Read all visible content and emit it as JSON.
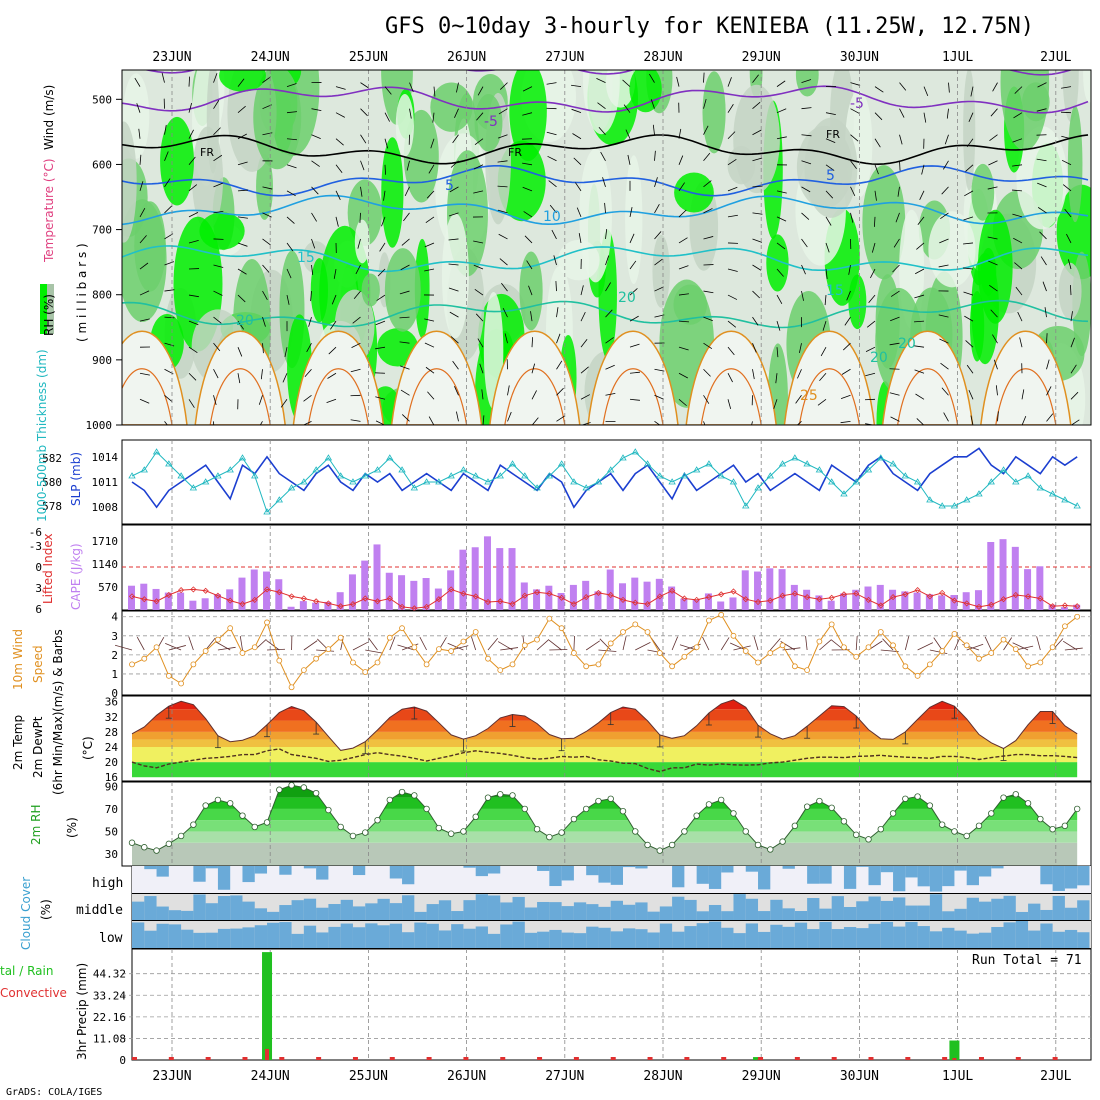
{
  "chart_data": {
    "type": "meteogram",
    "title": "GFS 0~10day 3-hourly for KENIEBA (11.25W, 12.75N)",
    "date_labels": [
      "23JUN",
      "24JUN",
      "25JUN",
      "26JUN",
      "27JUN",
      "28JUN",
      "29JUN",
      "30JUN",
      "1JUL",
      "2JUL"
    ],
    "credit": "GrADS: COLA/IGES",
    "colors": {
      "rh_dark": "#00ee00",
      "rh_mid": "#6ccf6c",
      "rh_light": "#a8c4a8",
      "rh_pale": "#e8f4e8",
      "slp": "#1c3fd0",
      "thick": "#20b8c0",
      "cape": "#c080f0",
      "li": "#e03030",
      "wind": "#e09020",
      "barb": "#603030",
      "precip": "#20c020",
      "convective": "#e03030",
      "cloud": "#6aaad8",
      "cloud_bg": "#e0e0e0"
    },
    "panels": [
      {
        "name": "upper_air",
        "ylabel_parts": [
          "RH (%)",
          "Temperature (°C)",
          "Wind (m/s)"
        ],
        "ylabel_unit": "( m i l l i b a r s )",
        "yticks": [
          500,
          600,
          700,
          800,
          900,
          1000
        ],
        "ylim": [
          455,
          1000
        ],
        "contour_labels": [
          "-5",
          "-5",
          "FR",
          "FR",
          "FR",
          "5",
          "5",
          "10",
          "15",
          "15",
          "20",
          "20",
          "20",
          "20",
          "25"
        ],
        "isotherm_levels_mb": {
          "minus5": 500,
          "freezing": 577,
          "plus5": 625,
          "plus10": 670,
          "plus15": 745,
          "plus20": 830
        }
      },
      {
        "name": "slp_thickness",
        "ylabel_left": "1000-500mb Thickness (dm)",
        "ylabel_right": "SLP (mb)",
        "left_ticks": [
          "582",
          "580",
          "578"
        ],
        "right_ticks": [
          "1014",
          "1011",
          "1008"
        ],
        "slp_mb": [
          1011,
          1010,
          1008,
          1010,
          1011,
          1012,
          1013,
          1011,
          1009,
          1013,
          1012,
          1014,
          1012,
          1011,
          1010,
          1012,
          1013,
          1011,
          1010,
          1012,
          1011,
          1012,
          1010,
          1011,
          1012,
          1011,
          1010,
          1012,
          1011,
          1010,
          1013,
          1012,
          1011,
          1010,
          1012,
          1011,
          1008,
          1010,
          1011,
          1012,
          1010,
          1012,
          1013,
          1011,
          1009,
          1012,
          1010,
          1011,
          1012,
          1013,
          1011,
          1012,
          1010,
          1011,
          1012,
          1011,
          1010,
          1013,
          1012,
          1011,
          1013,
          1014,
          1012,
          1011,
          1010,
          1012,
          1013,
          1014,
          1014,
          1015,
          1013,
          1012,
          1014,
          1013,
          1012,
          1014,
          1013,
          1014
        ],
        "thickness_dm": [
          580.5,
          581,
          582.5,
          581.5,
          580.5,
          579.5,
          580,
          580.5,
          581,
          582,
          580.5,
          577.5,
          578.5,
          579.5,
          580,
          581,
          582,
          580.5,
          580,
          580.5,
          581,
          582,
          581,
          579.5,
          580,
          580,
          580.5,
          581,
          580.5,
          580,
          580.5,
          581.5,
          580.5,
          579.5,
          580.5,
          581.5,
          580,
          579.5,
          580,
          581,
          582,
          582.5,
          581.5,
          580.5,
          580,
          580.5,
          581,
          581.5,
          580.5,
          580,
          578,
          579.5,
          580.5,
          581.5,
          582,
          581.5,
          581,
          580,
          579,
          580,
          581,
          582,
          581.5,
          580.5,
          580,
          578.5,
          578,
          578,
          578.5,
          579,
          580,
          581,
          580,
          580.5,
          579.5,
          579,
          578.5,
          578
        ]
      },
      {
        "name": "cape_li",
        "ylabel_left": "Lifted Index",
        "ylabel_right": "CAPE (J/kg)",
        "li_ticks": [
          "-3",
          "-6",
          "0",
          "3",
          "6"
        ],
        "cape_ticks": [
          "1710",
          "1140",
          "570"
        ],
        "cape_jkg": [
          600,
          650,
          520,
          430,
          430,
          230,
          290,
          390,
          510,
          800,
          1000,
          950,
          760,
          80,
          220,
          180,
          200,
          440,
          880,
          1220,
          1620,
          920,
          860,
          720,
          790,
          530,
          980,
          1490,
          1550,
          1820,
          1530,
          1530,
          680,
          510,
          600,
          420,
          620,
          720,
          460,
          1000,
          660,
          800,
          700,
          770,
          580,
          280,
          260,
          410,
          210,
          310,
          980,
          950,
          1030,
          1010,
          620,
          500,
          360,
          230,
          410,
          500,
          580,
          620,
          500,
          460,
          430,
          390,
          360,
          370,
          440,
          490,
          1680,
          1750,
          1560,
          1010,
          1080,
          130,
          70,
          130
        ],
        "li": [
          -4.2,
          -4.6,
          -4.9,
          -4,
          -3.3,
          -3.2,
          -3.4,
          -4.1,
          -4.8,
          -5.3,
          -4.7,
          -3.2,
          -3.6,
          -4.2,
          -4.5,
          -4.9,
          -5.2,
          -5.6,
          -5.3,
          -4.5,
          -4.9,
          -4.5,
          -5.7,
          -5.9,
          -5.7,
          -4.6,
          -3.2,
          -3.8,
          -4.2,
          -5,
          -4.9,
          -5.3,
          -4.1,
          -3.6,
          -3.8,
          -4.4,
          -5.3,
          -4.3,
          -3.7,
          -4,
          -4.7,
          -5.1,
          -5.3,
          -4.2,
          -3.4,
          -4.5,
          -4.7,
          -4.3,
          -3.9,
          -3.5,
          -4.6,
          -5,
          -4.8,
          -4.1,
          -3.8,
          -4.3,
          -4.6,
          -4.4,
          -3.9,
          -3.8,
          -4.7,
          -5.5,
          -4.3,
          -3.9,
          -3.3,
          -4.2,
          -3.7,
          -4.8,
          -5.2,
          -5.7,
          -5.4,
          -4.6,
          -4,
          -4.2,
          -4.5,
          -5.6,
          -5.5,
          -5.6
        ]
      },
      {
        "name": "wind10m",
        "ylabel": "10m Wind Speed (m/s) & Barbs",
        "yticks": [
          "4",
          "3",
          "2",
          "1",
          "0"
        ],
        "speed_ms": [
          1.5,
          1.8,
          2.4,
          0.9,
          0.5,
          1.5,
          2.2,
          2.8,
          3.4,
          2.1,
          2.4,
          3.7,
          1.7,
          0.3,
          1.2,
          1.8,
          2.3,
          2.9,
          1.6,
          1.1,
          1.6,
          2.9,
          3.4,
          2.4,
          1.5,
          2.3,
          2.2,
          2.7,
          3.2,
          1.8,
          1.2,
          1.5,
          2.5,
          2.8,
          3.9,
          3.4,
          2.1,
          1.4,
          1.5,
          2.6,
          3.2,
          3.6,
          3.2,
          2.1,
          1.4,
          1.9,
          2.4,
          3.8,
          4.1,
          3,
          2.2,
          1.6,
          2.1,
          2.5,
          1.4,
          1.2,
          2.7,
          3.6,
          2.4,
          1.9,
          2.4,
          3.2,
          2.5,
          1.4,
          0.9,
          1.5,
          2.2,
          3.1,
          2.5,
          1.8,
          2.1,
          2.8,
          2.3,
          1.4,
          1.6,
          2.4,
          3.5,
          4
        ]
      },
      {
        "name": "temperature",
        "ylabel": "2m Temp / 2m DewPt (6hr Min/Max) (°C)",
        "yticks": [
          "36",
          "32",
          "28",
          "24",
          "20",
          "16"
        ],
        "temp_c": [
          27.5,
          29.3,
          32.4,
          34.8,
          36.1,
          35.2,
          31.5,
          27,
          25.4,
          25.8,
          27,
          29.9,
          33.1,
          34.7,
          33.6,
          30.6,
          26.8,
          23.1,
          23.7,
          25.4,
          28.5,
          31.8,
          34,
          34.6,
          33.5,
          30.4,
          27.2,
          26.1,
          27,
          28.9,
          31.7,
          32.6,
          32.2,
          30.2,
          27.3,
          26.2,
          26.3,
          28.1,
          30.4,
          33.1,
          34.6,
          34,
          30.9,
          27.2,
          26.3,
          27,
          29.6,
          33,
          35.4,
          36.5,
          34.5,
          29.8,
          27.5,
          26.1,
          27,
          29.5,
          32.2,
          34.9,
          34.7,
          32.2,
          28.6,
          26.2,
          26,
          28,
          31.3,
          34.5,
          36.1,
          34.8,
          31.4,
          27.3,
          25.1,
          23.6,
          25.7,
          29.9,
          33.4,
          33.4,
          29.6,
          27.5
        ],
        "dewpoint_c": [
          20,
          19,
          18.5,
          19.5,
          20,
          20.5,
          21,
          21.2,
          21.5,
          22,
          22,
          23,
          23.5,
          22,
          21.5,
          21,
          20.2,
          20.5,
          21.2,
          22,
          22.5,
          22,
          21.6,
          21,
          20.3,
          21,
          21.7,
          22.5,
          23,
          22.6,
          22.3,
          21.8,
          21.2,
          20.8,
          21,
          21.5,
          21.3,
          21.5,
          20.6,
          20.3,
          19.7,
          19.6,
          18.3,
          17.5,
          18.5,
          18.5,
          19.5,
          19.2,
          19.5,
          19.3,
          19.2,
          19.3,
          19.8,
          20,
          20.5,
          21,
          21.3,
          21.3,
          21.2,
          21.5,
          21.6,
          21.8,
          21.5,
          21.3,
          21.2,
          21,
          21.5,
          21.5,
          21.2,
          20.7,
          21.2,
          21.6,
          22,
          22,
          21.7,
          21.7,
          21.5,
          21.2
        ]
      },
      {
        "name": "rh2m",
        "ylabel": "2m RH (%)",
        "yticks": [
          "90",
          "70",
          "50",
          "30"
        ],
        "rh_pct": [
          40,
          36,
          33,
          39,
          46,
          56,
          73,
          78,
          75,
          64,
          54,
          58,
          87,
          91,
          89,
          84,
          69,
          54,
          46,
          49,
          60,
          78,
          85,
          82,
          70,
          53,
          48,
          50,
          63,
          80,
          83,
          82,
          70,
          52,
          45,
          49,
          61,
          70,
          77,
          79,
          68,
          50,
          38,
          33,
          38,
          50,
          64,
          74,
          78,
          66,
          50,
          38,
          34,
          41,
          55,
          72,
          77,
          71,
          59,
          47,
          43,
          52,
          66,
          79,
          81,
          73,
          56,
          50,
          46,
          55,
          66,
          80,
          83,
          75,
          61,
          52,
          55,
          70
        ],
        "rh_annotation": "(%)"
      },
      {
        "name": "cloud_cover",
        "ylabel": "Cloud Cover (%)",
        "layers": [
          "high",
          "middle",
          "low"
        ]
      },
      {
        "name": "precip",
        "ylabel_left": "Total / Rain",
        "ylabel_convective": "Convective",
        "ylabel": "3hr Precip (mm)",
        "yticks": [
          "44.32",
          "33.24",
          "22.16",
          "11.08",
          "0"
        ],
        "run_total_label": "Run Total = 71",
        "precip_mm": [
          0,
          0,
          0,
          0,
          0,
          0,
          0,
          0,
          0,
          0,
          0,
          55.4,
          0,
          0,
          0,
          0,
          0,
          0,
          0,
          0,
          0,
          0,
          0,
          0,
          0,
          0,
          0,
          0,
          0,
          0,
          0,
          0,
          0,
          0,
          0,
          0,
          0,
          0,
          0,
          0,
          0,
          0,
          0,
          0,
          0,
          0,
          0,
          0,
          0,
          0,
          0,
          1.5,
          0,
          0,
          0,
          0,
          0,
          0,
          0,
          0,
          0,
          0,
          0,
          0,
          0,
          0,
          0,
          10,
          0,
          0,
          0,
          0,
          0,
          0,
          0,
          0,
          0,
          0
        ]
      }
    ]
  }
}
